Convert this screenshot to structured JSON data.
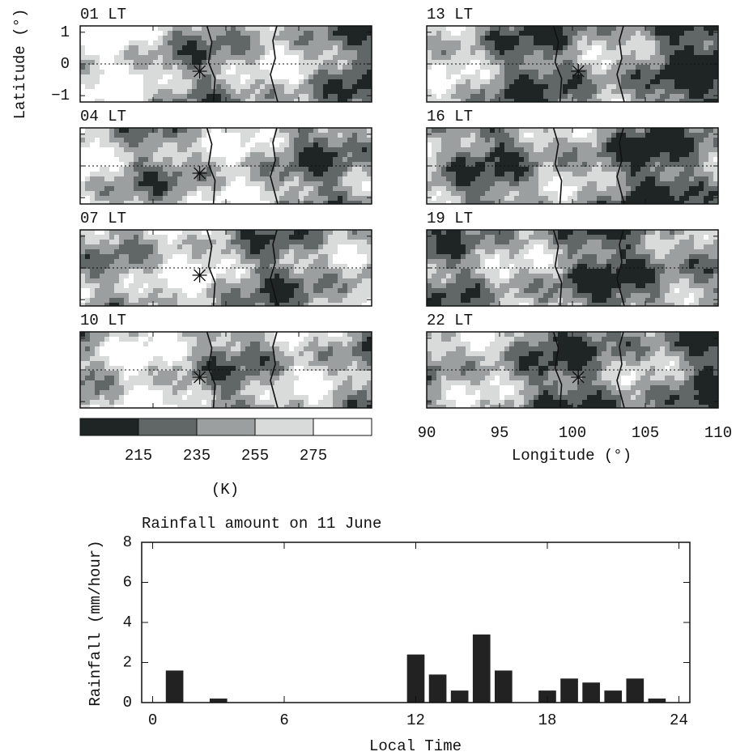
{
  "chart_data": [
    {
      "type": "map",
      "panels": [
        "01 LT",
        "04 LT",
        "07 LT",
        "10 LT",
        "13 LT",
        "16 LT",
        "19 LT",
        "22 LT"
      ],
      "ylabel": "Latitude (°)",
      "ylim": [
        -1.2,
        1.2
      ],
      "yticks": [
        1,
        0,
        {
          "value": -1,
          "label": "−1"
        }
      ],
      "xlabel": "Longitude (°)",
      "xlim": [
        90,
        110
      ],
      "xticks": [
        90,
        95,
        100,
        105,
        110
      ],
      "colorbar": {
        "lim": [
          195,
          295
        ],
        "ticks": [
          215,
          235,
          255,
          275
        ],
        "unit": "(K)",
        "colors": [
          "#1f2525",
          "#616666",
          "#9c9f9f",
          "#d9dada",
          "#ffffff"
        ]
      }
    },
    {
      "type": "bar",
      "title": "Rainfall amount on 11 June",
      "xlabel": "Local Time",
      "ylabel": "Rainfall (mm/hour)",
      "x": [
        1,
        3,
        12,
        13,
        14,
        15,
        16,
        18,
        19,
        20,
        21,
        22,
        23
      ],
      "values": [
        1.6,
        0.2,
        2.4,
        1.4,
        0.6,
        3.4,
        1.6,
        0.6,
        1.2,
        1.0,
        0.6,
        1.2,
        0.2
      ],
      "color": "#222222",
      "xlim": [
        -0.5,
        24.5
      ],
      "xticks": [
        0,
        6,
        12,
        18,
        24
      ],
      "ylim": [
        0,
        8
      ],
      "yticks": [
        0,
        2,
        4,
        6,
        8
      ]
    }
  ]
}
